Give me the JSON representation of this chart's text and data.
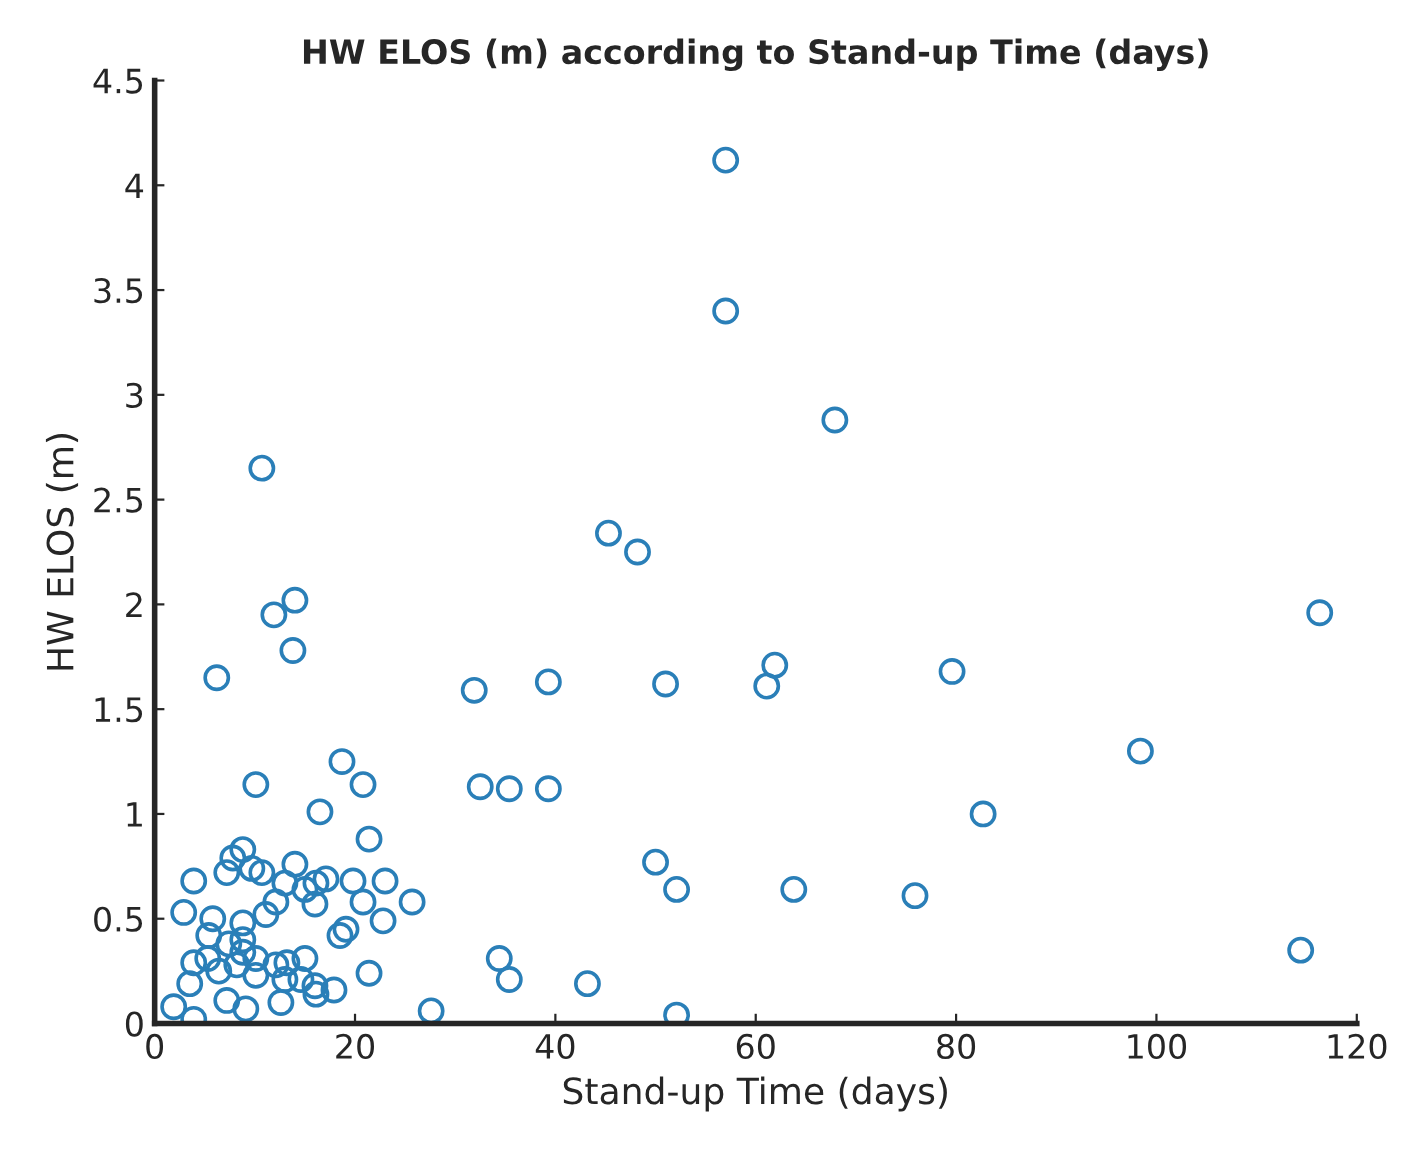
{
  "chart_data": {
    "type": "scatter",
    "title": "HW ELOS (m) according to Stand-up Time (days)",
    "xlabel": "Stand-up Time (days)",
    "ylabel": "HW ELOS (m)",
    "xlim": [
      0,
      120
    ],
    "ylim": [
      0,
      4.5
    ],
    "xticks": [
      0,
      20,
      40,
      60,
      80,
      100,
      120
    ],
    "yticks": [
      0,
      0.5,
      1,
      1.5,
      2,
      2.5,
      3,
      3.5,
      4,
      4.5
    ],
    "grid": false,
    "marker": "circle",
    "series": [
      {
        "color": "#2a7fb8",
        "x": [
          10.7,
          6.2,
          11.9,
          14.0,
          13.8,
          31.9,
          39.3,
          45.3,
          48.2,
          51.0,
          57.0,
          57.0,
          67.9,
          61.1,
          61.9,
          79.6,
          82.7,
          98.4,
          114.4,
          116.3,
          75.9,
          63.8,
          50.0,
          52.1,
          35.4,
          39.3,
          32.5,
          34.4,
          35.4,
          43.2,
          52.1,
          10.1,
          20.8,
          18.7,
          16.5,
          21.4,
          8.8,
          7.8,
          9.7,
          7.2,
          14.0,
          10.7,
          3.9,
          13.0,
          16.1,
          17.1,
          19.8,
          23.0,
          25.7,
          20.8,
          15.0,
          12.1,
          16.0,
          11.1,
          2.9,
          5.8,
          8.8,
          22.8,
          19.1,
          18.5,
          5.4,
          8.8,
          7.4,
          3.9,
          5.3,
          8.8,
          6.4,
          8.2,
          10.1,
          10.1,
          12.1,
          13.2,
          13.0,
          15.0,
          14.6,
          16.0,
          17.9,
          21.4,
          3.5,
          1.9,
          7.2,
          9.1,
          12.6,
          16.1,
          27.6,
          3.9
        ],
        "values": [
          2.65,
          1.65,
          1.95,
          2.02,
          1.78,
          1.59,
          1.63,
          2.34,
          2.25,
          1.62,
          4.12,
          3.4,
          2.88,
          1.61,
          1.71,
          1.68,
          1.0,
          1.3,
          0.35,
          1.96,
          0.61,
          0.64,
          0.77,
          0.64,
          1.12,
          1.12,
          1.13,
          0.31,
          0.21,
          0.19,
          0.04,
          1.14,
          1.14,
          1.25,
          1.01,
          0.88,
          0.83,
          0.79,
          0.74,
          0.72,
          0.76,
          0.72,
          0.68,
          0.67,
          0.67,
          0.69,
          0.68,
          0.68,
          0.58,
          0.58,
          0.64,
          0.58,
          0.57,
          0.52,
          0.53,
          0.5,
          0.48,
          0.49,
          0.45,
          0.42,
          0.42,
          0.4,
          0.38,
          0.29,
          0.31,
          0.34,
          0.25,
          0.28,
          0.31,
          0.23,
          0.28,
          0.29,
          0.21,
          0.31,
          0.21,
          0.18,
          0.16,
          0.24,
          0.19,
          0.08,
          0.11,
          0.07,
          0.1,
          0.14,
          0.06,
          0.02
        ]
      }
    ]
  }
}
